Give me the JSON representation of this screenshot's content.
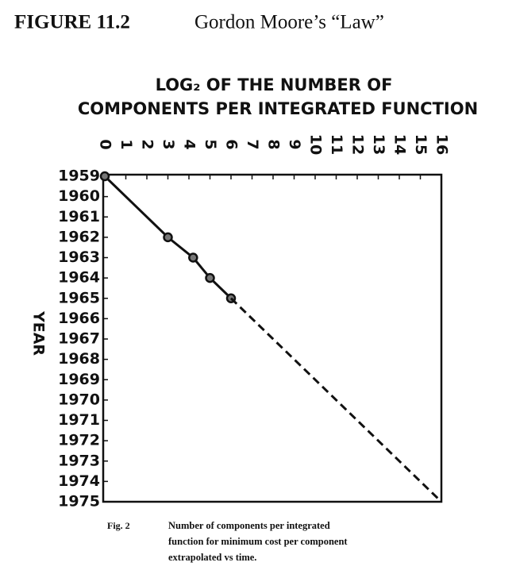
{
  "heading": {
    "figure": "FIGURE 11.2",
    "title": "Gordon Moore’s “Law”"
  },
  "chart_data": {
    "type": "line",
    "xlabel": [
      "LOG₂ OF THE NUMBER OF",
      "COMPONENTS PER INTEGRATED FUNCTION"
    ],
    "ylabel": "YEAR",
    "xlim": [
      0,
      16
    ],
    "xticks": [
      0,
      1,
      2,
      3,
      4,
      5,
      6,
      7,
      8,
      9,
      10,
      11,
      12,
      13,
      14,
      15,
      16
    ],
    "ylim": [
      1975,
      1959
    ],
    "yticks": [
      1959,
      1960,
      1961,
      1962,
      1963,
      1964,
      1965,
      1966,
      1967,
      1968,
      1969,
      1970,
      1971,
      1972,
      1973,
      1974,
      1975
    ],
    "series": [
      {
        "style": "solid",
        "color": "#111111",
        "x": [
          0,
          3,
          4.2,
          5,
          6
        ],
        "values": [
          1959,
          1962,
          1963,
          1964,
          1965
        ]
      },
      {
        "style": "dashed",
        "color": "#111111",
        "x": [
          6,
          16
        ],
        "values": [
          1965,
          1975
        ]
      }
    ],
    "caption": {
      "label": "Fig. 2",
      "lines": [
        "Number of components per integrated",
        "function for minimum cost per component",
        "extrapolated vs time."
      ]
    }
  }
}
